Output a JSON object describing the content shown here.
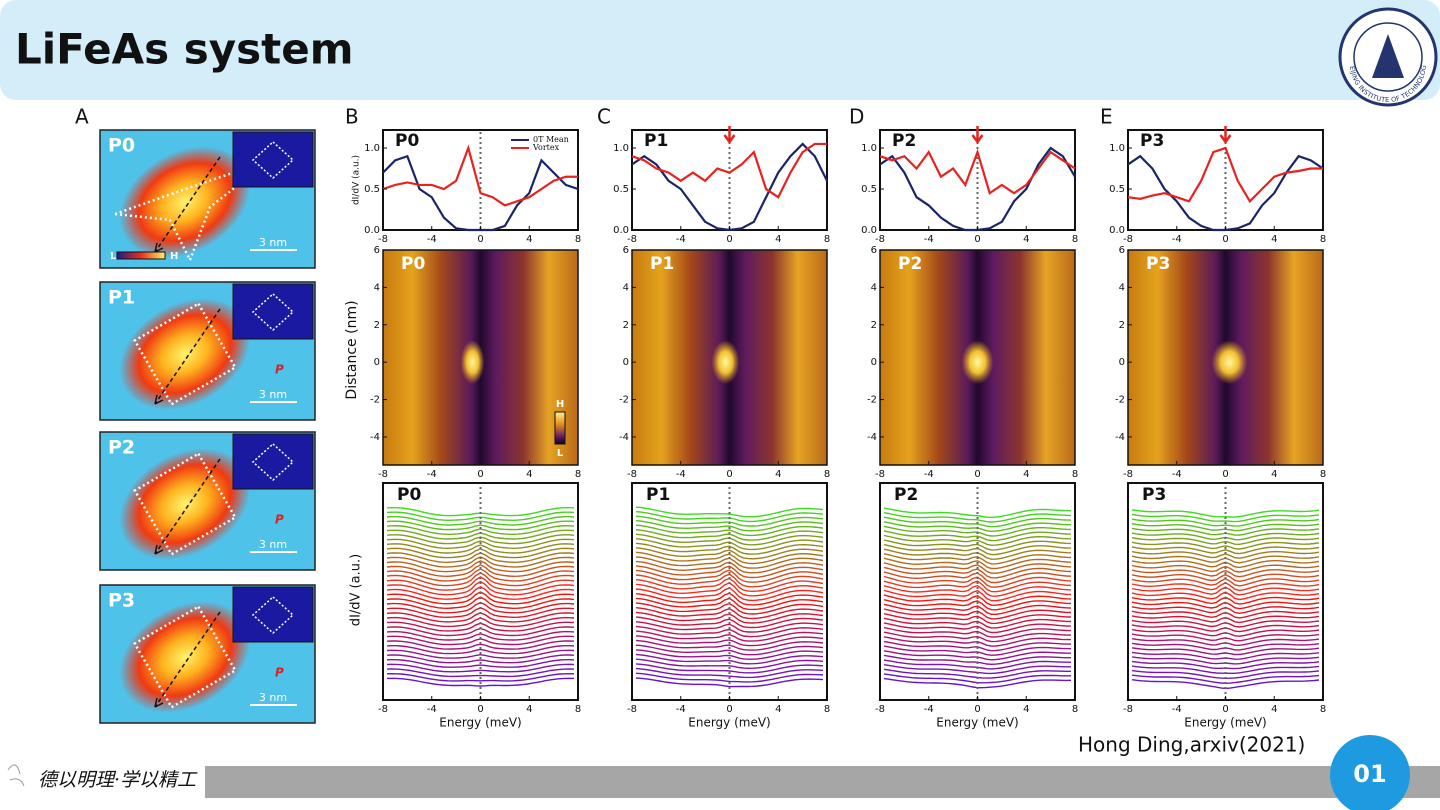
{
  "header": {
    "title": "LiFeAs system",
    "logo_text": "BEIJING INSTITUTE OF TECHNOLOGY"
  },
  "figure": {
    "panel_letters": [
      "A",
      "B",
      "C",
      "D",
      "E"
    ],
    "topographs": {
      "colorbar": {
        "low": "L",
        "high": "H"
      },
      "items": [
        {
          "label": "P0",
          "scale": "3 nm"
        },
        {
          "label": "P1",
          "scale": "3 nm",
          "marker": "P"
        },
        {
          "label": "P2",
          "scale": "3 nm",
          "marker": "P"
        },
        {
          "label": "P3",
          "scale": "3 nm",
          "marker": "P"
        }
      ]
    },
    "spectra": {
      "type": "line",
      "y_label": "dI/dV (a.u.)",
      "x": [
        -8,
        -7,
        -6,
        -5,
        -4,
        -3,
        -2,
        -1,
        0,
        1,
        2,
        3,
        4,
        5,
        6,
        7,
        8
      ],
      "xlim": [
        -8,
        8
      ],
      "xticks": [
        -8,
        -4,
        0,
        4,
        8
      ],
      "ylim": [
        0,
        1.22
      ],
      "yticks": [
        {
          "value": 0,
          "label": "0.0"
        },
        {
          "value": 0.5,
          "label": "0.5"
        },
        {
          "value": 1,
          "label": "1.0"
        }
      ],
      "series_style": [
        {
          "name": "0T Mean",
          "color": "#1a2466"
        },
        {
          "name": "Vortex",
          "color": "#e8231f"
        }
      ],
      "panels": [
        {
          "label": "P0",
          "mean": [
            0.7,
            0.85,
            0.9,
            0.5,
            0.4,
            0.15,
            0.02,
            0,
            0,
            0,
            0.05,
            0.3,
            0.45,
            0.85,
            0.7,
            0.55,
            0.5
          ],
          "vortex": [
            0.5,
            0.55,
            0.58,
            0.55,
            0.55,
            0.5,
            0.6,
            1.0,
            0.45,
            0.4,
            0.3,
            0.35,
            0.4,
            0.5,
            0.6,
            0.65,
            0.65
          ]
        },
        {
          "label": "P1",
          "mean": [
            0.8,
            0.9,
            0.8,
            0.6,
            0.5,
            0.3,
            0.1,
            0.02,
            0,
            0.02,
            0.1,
            0.4,
            0.7,
            0.9,
            1.05,
            0.9,
            0.6
          ],
          "vortex": [
            0.9,
            0.85,
            0.75,
            0.7,
            0.6,
            0.7,
            0.6,
            0.75,
            0.7,
            0.8,
            0.95,
            0.5,
            0.4,
            0.7,
            0.95,
            1.05,
            1.05
          ]
        },
        {
          "label": "P2",
          "mean": [
            0.8,
            0.9,
            0.7,
            0.4,
            0.3,
            0.15,
            0.05,
            0,
            0,
            0.02,
            0.1,
            0.35,
            0.5,
            0.8,
            1.0,
            0.9,
            0.65
          ],
          "vortex": [
            0.9,
            0.85,
            0.9,
            0.75,
            0.95,
            0.65,
            0.75,
            0.55,
            0.95,
            0.45,
            0.55,
            0.45,
            0.55,
            0.75,
            0.95,
            0.85,
            0.75
          ]
        },
        {
          "label": "P3",
          "mean": [
            0.8,
            0.9,
            0.75,
            0.5,
            0.35,
            0.15,
            0.05,
            0,
            0,
            0.02,
            0.08,
            0.3,
            0.45,
            0.7,
            0.9,
            0.85,
            0.75
          ],
          "vortex": [
            0.4,
            0.38,
            0.42,
            0.45,
            0.4,
            0.35,
            0.6,
            0.95,
            1.0,
            0.6,
            0.35,
            0.5,
            0.65,
            0.7,
            0.72,
            0.75,
            0.75
          ]
        }
      ]
    },
    "linecuts": {
      "y_label": "Distance (nm)",
      "ylim": [
        -5.5,
        6
      ],
      "yticks": [
        -4,
        -2,
        0,
        2,
        4,
        6
      ],
      "xlim": [
        -8,
        8
      ],
      "xticks": [
        -8,
        -4,
        0,
        4,
        8
      ],
      "colorbar": {
        "high": "H",
        "low": "L"
      },
      "labels": [
        "P0",
        "P1",
        "P2",
        "P3"
      ]
    },
    "waterfall": {
      "y_label": "dI/dV (a.u.)",
      "x_label": "Energy (meV)",
      "xlim": [
        -8,
        8
      ],
      "xticks": [
        -8,
        -4,
        0,
        4,
        8
      ],
      "labels": [
        "P0",
        "P1",
        "P2",
        "P3"
      ]
    }
  },
  "citation": "Hong Ding,arxiv(2021)",
  "footer": {
    "motto": "德以明理·学以精工",
    "page": "01"
  }
}
